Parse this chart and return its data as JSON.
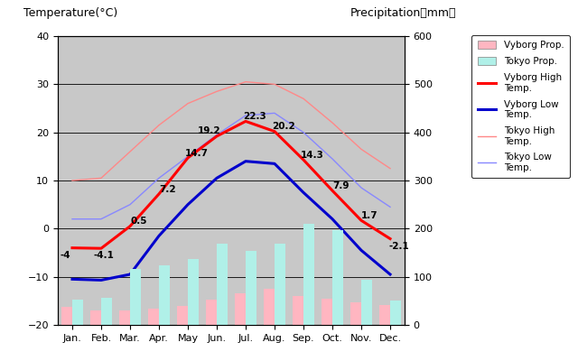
{
  "months": [
    "Jan.",
    "Feb.",
    "Mar.",
    "Apr.",
    "May",
    "Jun.",
    "Jul.",
    "Aug.",
    "Sep.",
    "Oct.",
    "Nov.",
    "Dec."
  ],
  "vyborg_high": [
    -4,
    -4.1,
    0.5,
    7.2,
    14.7,
    19.2,
    22.3,
    20.2,
    14.3,
    7.9,
    1.7,
    -2.1
  ],
  "vyborg_low": [
    -10.5,
    -10.7,
    -9.5,
    -1.5,
    5.0,
    10.5,
    14.0,
    13.5,
    7.5,
    2.0,
    -4.5,
    -9.5
  ],
  "tokyo_high": [
    10.0,
    10.5,
    16.0,
    21.5,
    26.0,
    28.5,
    30.5,
    30.0,
    27.0,
    22.0,
    16.5,
    12.5
  ],
  "tokyo_low": [
    2.0,
    2.0,
    5.0,
    10.5,
    15.0,
    19.5,
    23.5,
    24.0,
    20.0,
    14.5,
    8.5,
    4.5
  ],
  "vyborg_precip": [
    38,
    30,
    30,
    33,
    39,
    52,
    65,
    75,
    60,
    55,
    46,
    42
  ],
  "tokyo_precip": [
    52,
    56,
    117,
    124,
    137,
    168,
    154,
    168,
    210,
    197,
    93,
    51
  ],
  "vyborg_high_color": "#ff0000",
  "vyborg_low_color": "#0000cc",
  "tokyo_high_color": "#ff8888",
  "tokyo_low_color": "#8888ff",
  "vyborg_precip_color": "#ffb6c1",
  "tokyo_precip_color": "#b0f0e8",
  "bg_color": "#c8c8c8",
  "temp_min": -20,
  "temp_max": 40,
  "precip_min": 0,
  "precip_max": 600,
  "title_left": "Temperature(°C)",
  "title_right": "Precipitation（mm）",
  "annot_vyborg_high": [
    -4,
    -4.1,
    0.5,
    7.2,
    14.7,
    19.2,
    22.3,
    20.2,
    14.3,
    7.9,
    1.7,
    -2.1
  ],
  "bar_width": 0.38
}
